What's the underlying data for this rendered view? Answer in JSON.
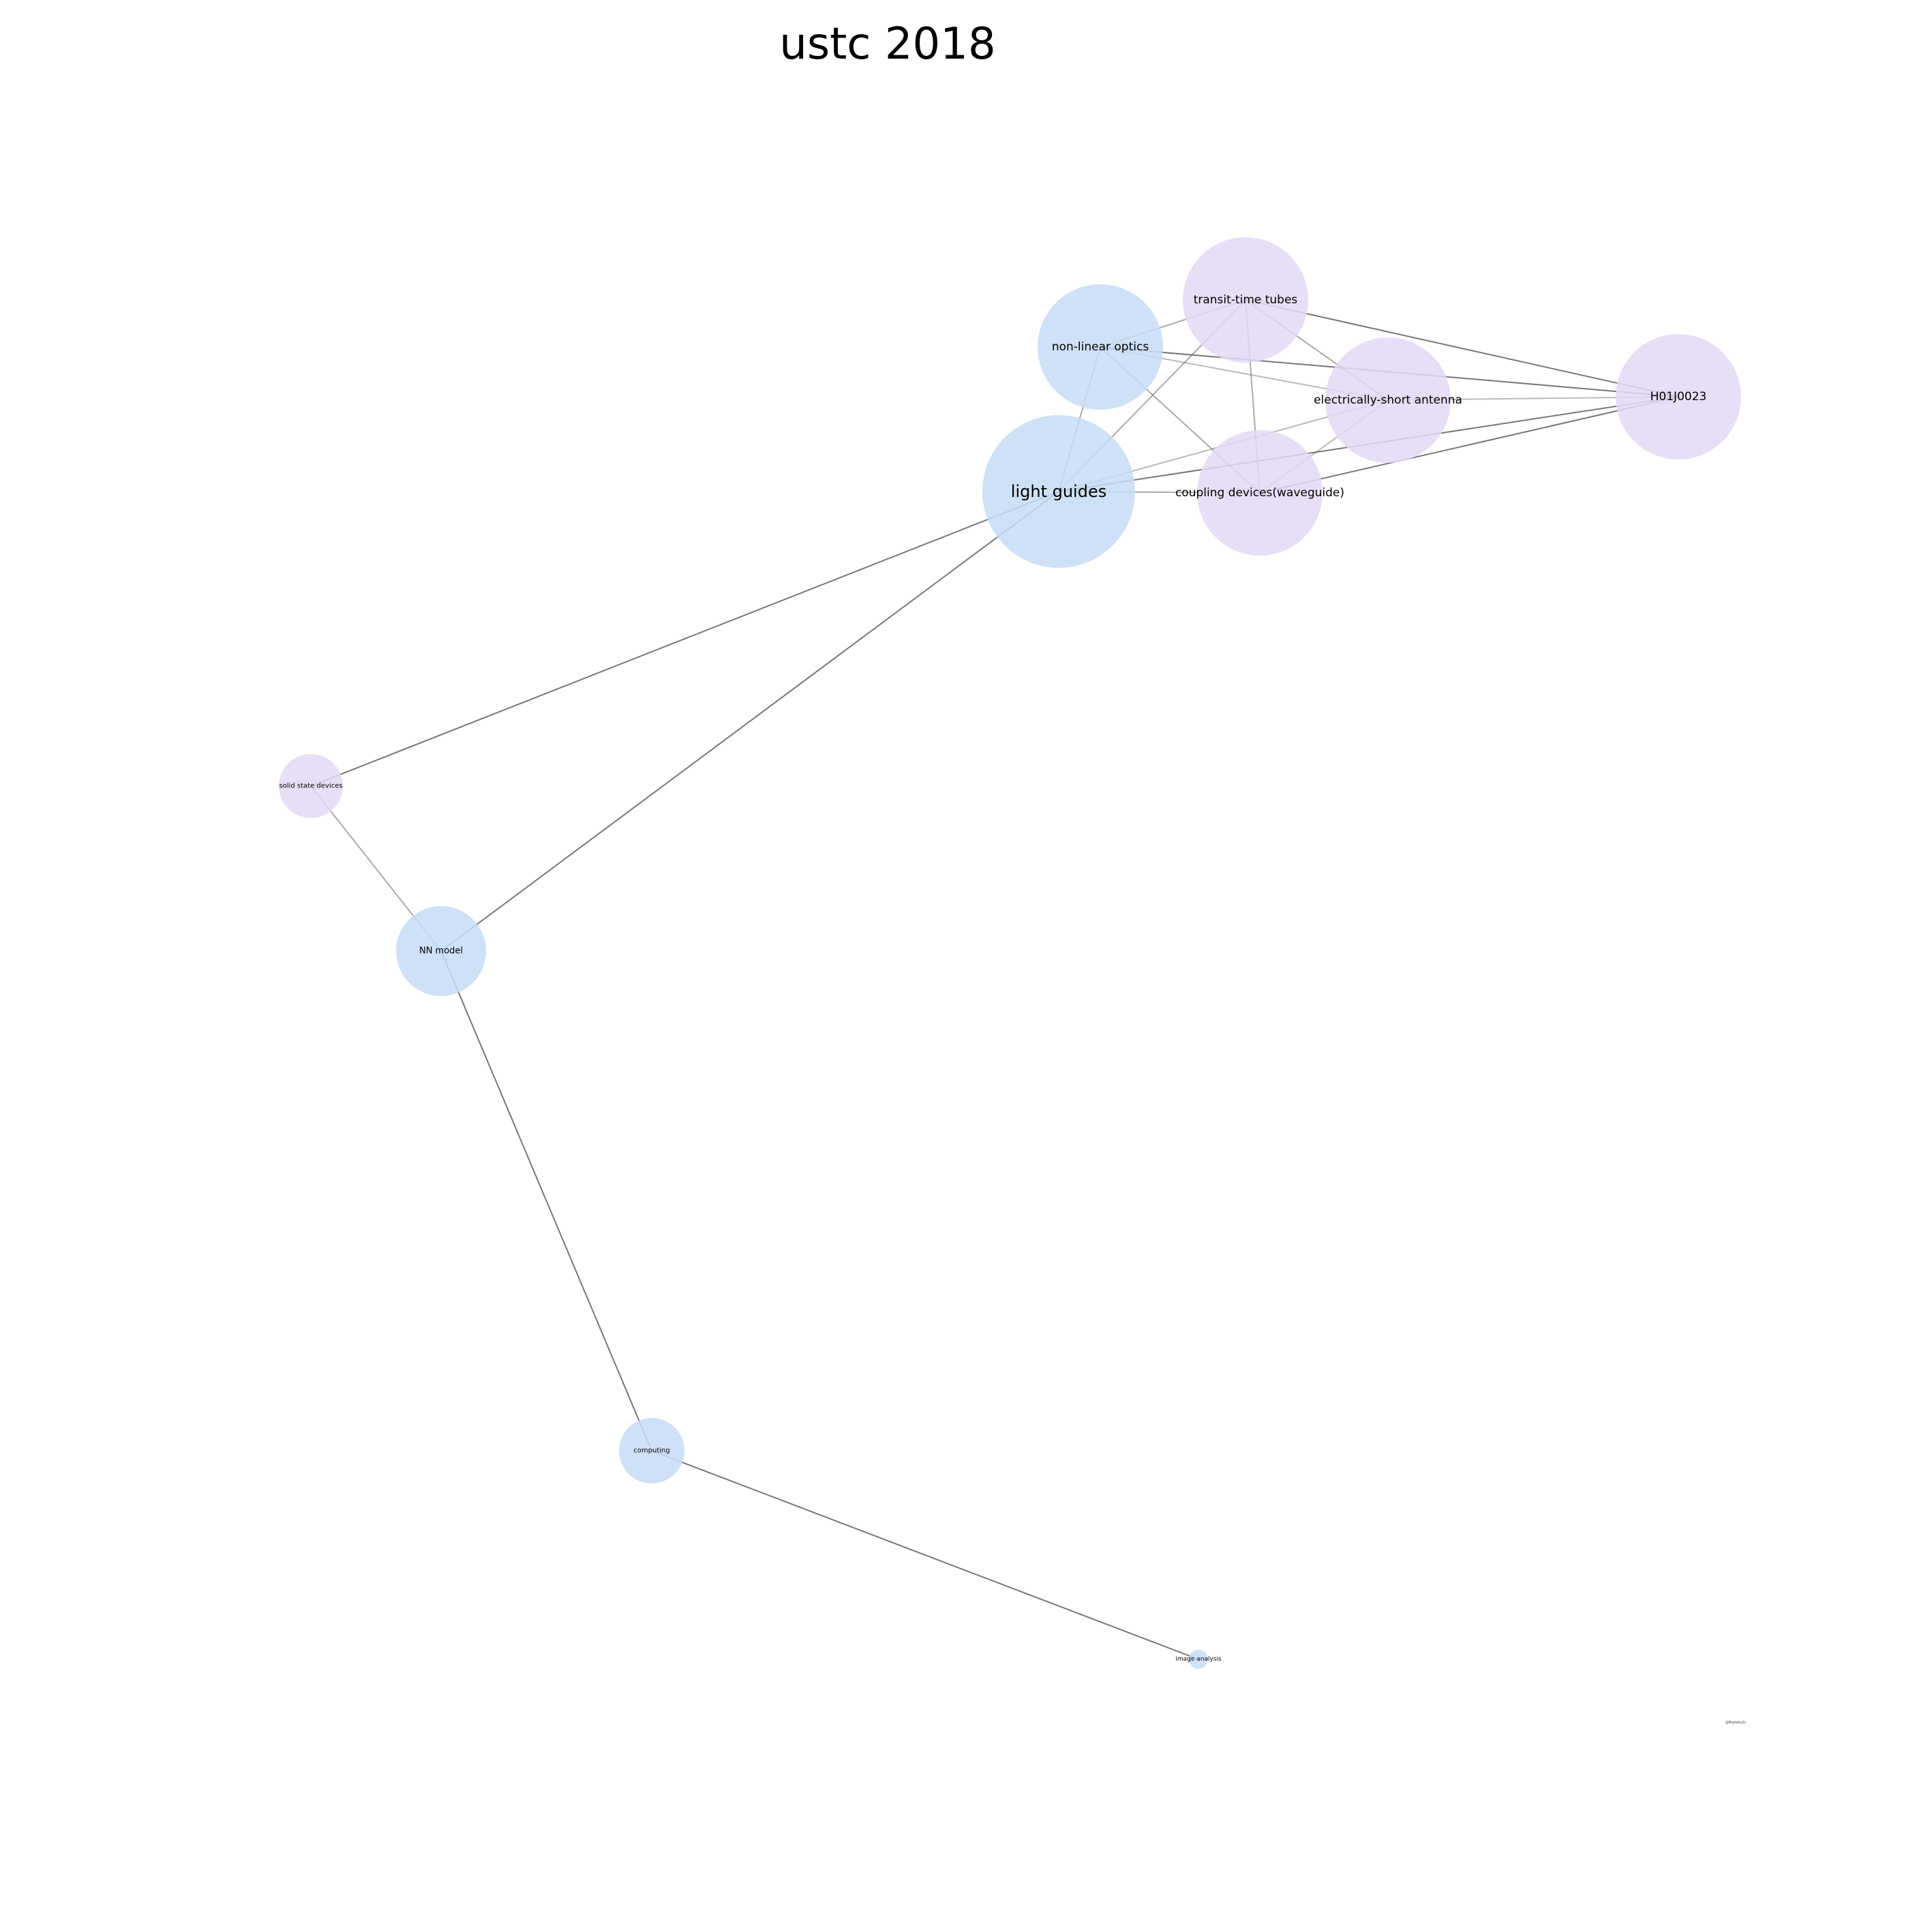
{
  "title": "ustc 2018",
  "colors": {
    "blue": "#c6dcf4",
    "purple": "#e3d9f5",
    "edge": "#555555"
  },
  "nodes": [
    {
      "id": "light-guides",
      "label": "light guides",
      "color": "blue"
    },
    {
      "id": "non-linear-optics",
      "label": "non-linear optics",
      "color": "blue"
    },
    {
      "id": "transit-time-tubes",
      "label": "transit-time tubes",
      "color": "purple"
    },
    {
      "id": "electrically-short-antenna",
      "label": "electrically-short antenna",
      "color": "purple"
    },
    {
      "id": "coupling-devices-waveguide",
      "label": "coupling devices(waveguide)",
      "color": "purple"
    },
    {
      "id": "h01j0023",
      "label": "H01J0023",
      "color": "purple"
    },
    {
      "id": "solid-state-devices",
      "label": "solid state devices",
      "color": "purple"
    },
    {
      "id": "nn-model",
      "label": "NN model",
      "color": "blue"
    },
    {
      "id": "computing",
      "label": "computing",
      "color": "blue"
    },
    {
      "id": "image-analysis",
      "label": "image analysis",
      "color": "blue"
    }
  ],
  "edges": [
    {
      "source": "transit-time-tubes",
      "target": "h01j0023",
      "weight": 0.8
    },
    {
      "source": "transit-time-tubes",
      "target": "non-linear-optics",
      "weight": 0.5
    },
    {
      "source": "transit-time-tubes",
      "target": "electrically-short-antenna",
      "weight": 0.5
    },
    {
      "source": "transit-time-tubes",
      "target": "coupling-devices-waveguide",
      "weight": 0.5
    },
    {
      "source": "transit-time-tubes",
      "target": "light-guides",
      "weight": 0.5
    },
    {
      "source": "non-linear-optics",
      "target": "h01j0023",
      "weight": 0.8
    },
    {
      "source": "non-linear-optics",
      "target": "electrically-short-antenna",
      "weight": 0.4
    },
    {
      "source": "non-linear-optics",
      "target": "coupling-devices-waveguide",
      "weight": 0.5
    },
    {
      "source": "non-linear-optics",
      "target": "light-guides",
      "weight": 0.5
    },
    {
      "source": "electrically-short-antenna",
      "target": "h01j0023",
      "weight": 0.4
    },
    {
      "source": "electrically-short-antenna",
      "target": "coupling-devices-waveguide",
      "weight": 0.4
    },
    {
      "source": "electrically-short-antenna",
      "target": "light-guides",
      "weight": 0.4
    },
    {
      "source": "light-guides",
      "target": "h01j0023",
      "weight": 0.8
    },
    {
      "source": "light-guides",
      "target": "coupling-devices-waveguide",
      "weight": 0.5
    },
    {
      "source": "coupling-devices-waveguide",
      "target": "h01j0023",
      "weight": 0.8
    },
    {
      "source": "light-guides",
      "target": "solid-state-devices",
      "weight": 0.8
    },
    {
      "source": "light-guides",
      "target": "nn-model",
      "weight": 0.8
    },
    {
      "source": "solid-state-devices",
      "target": "nn-model",
      "weight": 0.5
    },
    {
      "source": "nn-model",
      "target": "computing",
      "weight": 0.8
    },
    {
      "source": "computing",
      "target": "image-analysis",
      "weight": 0.8
    }
  ],
  "watermark": "@Bigdata2u"
}
